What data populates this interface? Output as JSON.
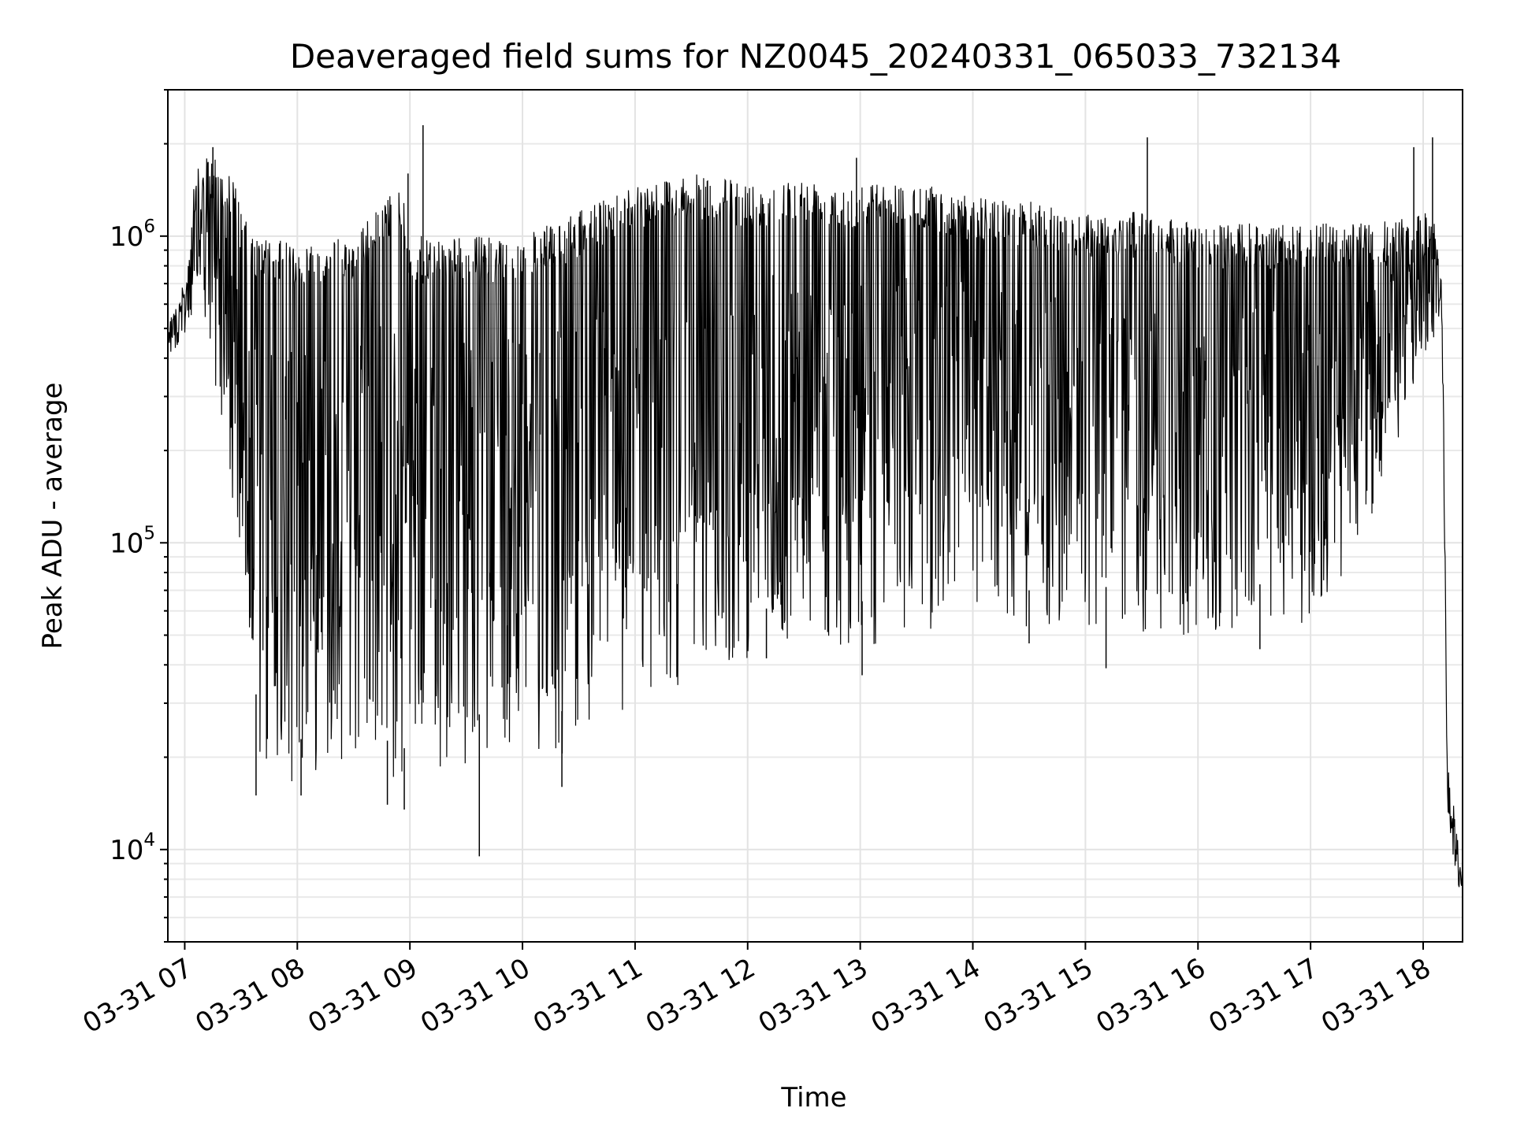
{
  "chart_data": {
    "type": "line",
    "title": "Deaveraged field sums for NZ0045_20240331_065033_732134",
    "xlabel": "Time",
    "ylabel": "Peak ADU - average",
    "yscale": "log",
    "ylim": [
      5000,
      3000000
    ],
    "xlim": [
      "2024-03-31 06:51",
      "2024-03-31 18:21"
    ],
    "grid": true,
    "legend": "none",
    "line_color": "#000000",
    "x_ticks": [
      {
        "x": "2024-03-31 07:00",
        "label": "03-31 07"
      },
      {
        "x": "2024-03-31 08:00",
        "label": "03-31 08"
      },
      {
        "x": "2024-03-31 09:00",
        "label": "03-31 09"
      },
      {
        "x": "2024-03-31 10:00",
        "label": "03-31 10"
      },
      {
        "x": "2024-03-31 11:00",
        "label": "03-31 11"
      },
      {
        "x": "2024-03-31 12:00",
        "label": "03-31 12"
      },
      {
        "x": "2024-03-31 13:00",
        "label": "03-31 13"
      },
      {
        "x": "2024-03-31 14:00",
        "label": "03-31 14"
      },
      {
        "x": "2024-03-31 15:00",
        "label": "03-31 15"
      },
      {
        "x": "2024-03-31 16:00",
        "label": "03-31 16"
      },
      {
        "x": "2024-03-31 17:00",
        "label": "03-31 17"
      },
      {
        "x": "2024-03-31 18:00",
        "label": "03-31 18"
      }
    ],
    "y_ticks": [
      {
        "y": 10000,
        "base": "10",
        "exp": "4"
      },
      {
        "y": 100000,
        "base": "10",
        "exp": "5"
      },
      {
        "y": 1000000,
        "base": "10",
        "exp": "6"
      }
    ],
    "series": [
      {
        "upper_envelope": [
          [
            "2024-03-31 06:51",
            600000
          ],
          [
            "2024-03-31 07:00",
            700000
          ],
          [
            "2024-03-31 07:05",
            1600000
          ],
          [
            "2024-03-31 07:15",
            1900000
          ],
          [
            "2024-03-31 07:25",
            1600000
          ],
          [
            "2024-03-31 07:35",
            1000000
          ],
          [
            "2024-03-31 08:00",
            950000
          ],
          [
            "2024-03-31 08:30",
            1000000
          ],
          [
            "2024-03-31 08:55",
            1500000
          ],
          [
            "2024-03-31 09:00",
            1000000
          ],
          [
            "2024-03-31 09:30",
            1000000
          ],
          [
            "2024-03-31 10:00",
            1000000
          ],
          [
            "2024-03-31 10:30",
            1200000
          ],
          [
            "2024-03-31 11:00",
            1500000
          ],
          [
            "2024-03-31 11:30",
            1600000
          ],
          [
            "2024-03-31 12:00",
            1500000
          ],
          [
            "2024-03-31 12:30",
            1550000
          ],
          [
            "2024-03-31 13:00",
            1500000
          ],
          [
            "2024-03-31 13:30",
            1500000
          ],
          [
            "2024-03-31 14:00",
            1350000
          ],
          [
            "2024-03-31 14:30",
            1300000
          ],
          [
            "2024-03-31 15:00",
            1200000
          ],
          [
            "2024-03-31 15:30",
            1200000
          ],
          [
            "2024-03-31 16:00",
            1100000
          ],
          [
            "2024-03-31 16:30",
            1100000
          ],
          [
            "2024-03-31 17:00",
            1100000
          ],
          [
            "2024-03-31 17:30",
            1100000
          ],
          [
            "2024-03-31 18:05",
            1200000
          ],
          [
            "2024-03-31 18:10",
            800000
          ],
          [
            "2024-03-31 18:13",
            20000
          ],
          [
            "2024-03-31 18:21",
            9000
          ]
        ],
        "lower_envelope": [
          [
            "2024-03-31 06:51",
            400000
          ],
          [
            "2024-03-31 07:00",
            450000
          ],
          [
            "2024-03-31 07:10",
            500000
          ],
          [
            "2024-03-31 07:20",
            250000
          ],
          [
            "2024-03-31 07:30",
            60000
          ],
          [
            "2024-03-31 07:40",
            18000
          ],
          [
            "2024-03-31 08:00",
            16000
          ],
          [
            "2024-03-31 08:20",
            20000
          ],
          [
            "2024-03-31 08:40",
            17000
          ],
          [
            "2024-03-31 09:00",
            15000
          ],
          [
            "2024-03-31 09:20",
            18000
          ],
          [
            "2024-03-31 09:40",
            20000
          ],
          [
            "2024-03-31 10:00",
            22000
          ],
          [
            "2024-03-31 10:20",
            20000
          ],
          [
            "2024-03-31 10:40",
            24000
          ],
          [
            "2024-03-31 11:00",
            28000
          ],
          [
            "2024-03-31 11:30",
            35000
          ],
          [
            "2024-03-31 12:00",
            42000
          ],
          [
            "2024-03-31 12:30",
            47000
          ],
          [
            "2024-03-31 13:00",
            46000
          ],
          [
            "2024-03-31 13:30",
            48000
          ],
          [
            "2024-03-31 14:00",
            52000
          ],
          [
            "2024-03-31 14:30",
            50000
          ],
          [
            "2024-03-31 15:00",
            52000
          ],
          [
            "2024-03-31 15:30",
            50000
          ],
          [
            "2024-03-31 16:00",
            48000
          ],
          [
            "2024-03-31 16:30",
            52000
          ],
          [
            "2024-03-31 17:00",
            55000
          ],
          [
            "2024-03-31 17:30",
            100000
          ],
          [
            "2024-03-31 18:00",
            400000
          ],
          [
            "2024-03-31 18:10",
            500000
          ],
          [
            "2024-03-31 18:13",
            12000
          ],
          [
            "2024-03-31 18:21",
            6500
          ]
        ],
        "spikes": [
          [
            "2024-03-31 07:15",
            1950000
          ],
          [
            "2024-03-31 08:59",
            1600000
          ],
          [
            "2024-03-31 09:07",
            2300000
          ],
          [
            "2024-03-31 12:58",
            1800000
          ],
          [
            "2024-03-31 15:33",
            2100000
          ],
          [
            "2024-03-31 17:55",
            1950000
          ],
          [
            "2024-03-31 18:05",
            2100000
          ],
          [
            "2024-03-31 09:37",
            9500
          ],
          [
            "2024-03-31 10:21",
            16000
          ],
          [
            "2024-03-31 12:10",
            42000
          ],
          [
            "2024-03-31 13:01",
            37000
          ],
          [
            "2024-03-31 14:30",
            47000
          ],
          [
            "2024-03-31 15:11",
            39000
          ],
          [
            "2024-03-31 16:33",
            45000
          ],
          [
            "2024-03-31 07:38",
            15000
          ],
          [
            "2024-03-31 08:02",
            15000
          ],
          [
            "2024-03-31 08:57",
            13500
          ],
          [
            "2024-03-31 08:48",
            14000
          ]
        ]
      }
    ]
  }
}
